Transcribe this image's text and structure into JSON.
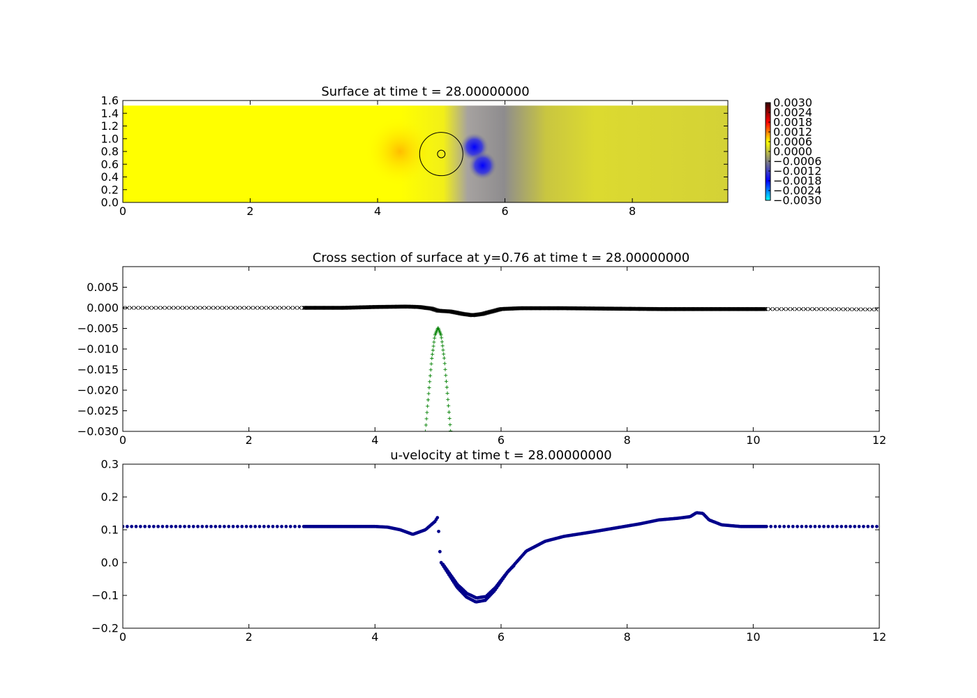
{
  "chart_data": [
    {
      "type": "heatmap",
      "title": "Surface at time t =    28.00000000",
      "xlim": [
        0,
        9.5
      ],
      "ylim": [
        0,
        1.6
      ],
      "x_ticks": [
        "0",
        "2",
        "4",
        "6",
        "8"
      ],
      "y_ticks": [
        "0.0",
        "0.2",
        "0.4",
        "0.6",
        "0.8",
        "1.0",
        "1.2",
        "1.4",
        "1.6"
      ],
      "domain_top": 1.52,
      "colorbar": {
        "range": [
          -0.003,
          0.003
        ],
        "ticks": [
          "0.0030",
          "0.0024",
          "0.0018",
          "0.0012",
          "0.0006",
          "0.0000",
          "−0.0006",
          "−0.0012",
          "−0.0018",
          "−0.0024",
          "−0.0030"
        ],
        "stops": [
          "#00ffff",
          "#0000ff",
          "#808080",
          "#ffff00",
          "#ff0000",
          "#330000"
        ]
      },
      "circle": {
        "cx": 5.0,
        "cy": 0.76,
        "r": 0.34
      },
      "inner_circle": {
        "cx": 5.0,
        "cy": 0.76,
        "r": 0.06
      },
      "blobs": [
        {
          "x": 5.52,
          "y": 0.87,
          "value": -0.002,
          "r": 0.22
        },
        {
          "x": 5.65,
          "y": 0.58,
          "value": -0.0018,
          "r": 0.22
        },
        {
          "x": 4.35,
          "y": 0.8,
          "value": 0.0005,
          "r": 0.55
        }
      ]
    },
    {
      "type": "scatter",
      "title": "Cross section of surface at y=0.76 at time t =    28.00000000",
      "xlim": [
        0,
        12
      ],
      "ylim": [
        -0.03,
        0.01
      ],
      "x_ticks": [
        "0",
        "2",
        "4",
        "6",
        "8",
        "10",
        "12"
      ],
      "y_ticks": [
        "0.005",
        "0.000",
        "−0.005",
        "−0.010",
        "−0.015",
        "−0.020",
        "−0.025",
        "−0.030"
      ],
      "series": [
        {
          "marker": "x",
          "color": "#000000",
          "x": [
            0,
            1,
            2,
            2.8,
            3.5,
            4.0,
            4.5,
            4.7,
            4.9,
            5.0,
            5.2,
            5.4,
            5.55,
            5.7,
            6.0,
            6.3,
            7.0,
            7.7,
            8.5,
            9.5,
            10.2,
            11.0,
            12.0
          ],
          "y": [
            0.0,
            0.0,
            0.0,
            0.0,
            0.0,
            0.0002,
            0.0003,
            0.0002,
            -0.0002,
            -0.0007,
            -0.0009,
            -0.0015,
            -0.0018,
            -0.0015,
            -0.0003,
            -0.0001,
            -0.0001,
            -0.0002,
            -0.0003,
            -0.0003,
            -0.0003,
            -0.0003,
            -0.0004
          ]
        },
        {
          "marker": "+",
          "color": "#008000",
          "x": [
            4.8,
            4.85,
            4.9,
            4.95,
            5.0,
            5.05,
            5.1,
            5.15,
            5.2
          ],
          "y": [
            -0.03,
            -0.021,
            -0.0125,
            -0.0067,
            -0.0048,
            -0.0067,
            -0.0125,
            -0.021,
            -0.03
          ]
        }
      ]
    },
    {
      "type": "scatter",
      "title": "u-velocity at time t =    28.00000000",
      "xlim": [
        0,
        12
      ],
      "ylim": [
        -0.2,
        0.3
      ],
      "x_ticks": [
        "0",
        "2",
        "4",
        "6",
        "8",
        "10",
        "12"
      ],
      "y_ticks": [
        "0.3",
        "0.2",
        "0.1",
        "0.0",
        "−0.1",
        "−0.2"
      ],
      "series": [
        {
          "marker": "o",
          "color": "#00008b",
          "x": [
            0,
            1,
            2,
            2.8,
            3.5,
            4.0,
            4.2,
            4.4,
            4.6,
            4.8,
            4.95,
            5.0,
            5.02,
            5.05,
            5.1,
            5.2,
            5.3,
            5.45,
            5.6,
            5.75,
            5.9,
            6.1,
            6.4,
            6.7,
            7.0,
            7.4,
            7.8,
            8.2,
            8.5,
            8.8,
            9.0,
            9.1,
            9.2,
            9.3,
            9.5,
            9.8,
            10.2,
            11.0,
            12.0
          ],
          "y": [
            0.11,
            0.11,
            0.11,
            0.11,
            0.11,
            0.11,
            0.108,
            0.1,
            0.086,
            0.1,
            0.125,
            0.14,
            0.05,
            0.0,
            -0.015,
            -0.045,
            -0.075,
            -0.105,
            -0.12,
            -0.115,
            -0.085,
            -0.03,
            0.035,
            0.065,
            0.08,
            0.092,
            0.105,
            0.118,
            0.13,
            0.135,
            0.14,
            0.152,
            0.15,
            0.13,
            0.115,
            0.11,
            0.11,
            0.11,
            0.11
          ]
        }
      ]
    }
  ]
}
